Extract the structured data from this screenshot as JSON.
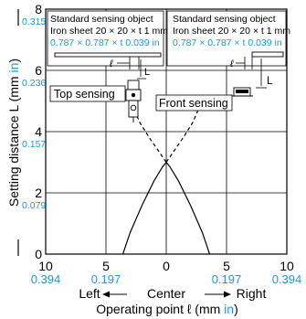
{
  "chart_data": {
    "type": "line",
    "ylabel_text": "Setting distance L (mm ",
    "ylabel_unit": "in",
    "ylabel_close": ")",
    "xlabel_text": "Operating point ℓ (mm ",
    "xlabel_unit": "in",
    "xlabel_close": ")",
    "xlim": [
      -10,
      10
    ],
    "ylim": [
      0,
      8
    ],
    "y_ticks": [
      {
        "v": 0,
        "mm": "0",
        "in": ""
      },
      {
        "v": 2,
        "mm": "2",
        "in": "0.079"
      },
      {
        "v": 4,
        "mm": "4",
        "in": "0.157"
      },
      {
        "v": 6,
        "mm": "6",
        "in": "0.236"
      },
      {
        "v": 8,
        "mm": "8",
        "in": "0.315"
      }
    ],
    "x_ticks": [
      {
        "v": -10,
        "mm": "10",
        "in": "0.394"
      },
      {
        "v": -5,
        "mm": "5",
        "in": "0.197"
      },
      {
        "v": 0,
        "mm": "0",
        "in": ""
      },
      {
        "v": 5,
        "mm": "5",
        "in": "0.197"
      },
      {
        "v": 10,
        "mm": "10",
        "in": "0.394"
      }
    ],
    "direction": {
      "left": "Left",
      "center": "Center",
      "right": "Right"
    },
    "series": [
      {
        "style": "solid",
        "x": [
          -3.6,
          -3.0,
          -2.0,
          -1.0,
          -0.3,
          0.0
        ],
        "y": [
          0.0,
          0.7,
          1.6,
          2.4,
          2.85,
          3.0
        ]
      },
      {
        "style": "solid",
        "x": [
          0.0,
          0.3,
          1.0,
          2.0,
          3.0,
          3.6
        ],
        "y": [
          3.0,
          2.85,
          2.4,
          1.6,
          0.7,
          0.0
        ]
      },
      {
        "style": "dashed",
        "x": [
          0.0,
          -0.7,
          -1.4,
          -2.2,
          -2.8
        ],
        "y": [
          3.0,
          3.4,
          3.8,
          4.3,
          4.85
        ]
      },
      {
        "style": "dashed",
        "x": [
          0.0,
          0.7,
          1.4,
          2.2,
          2.8
        ],
        "y": [
          3.0,
          3.4,
          3.8,
          4.3,
          4.85
        ]
      }
    ],
    "panels": [
      {
        "title": "Standard sensing object",
        "line2": "Iron sheet 20 × 20 × t 1 mm",
        "line3": "0.787 × 0.787 × t 0.039 in",
        "mode": "Top sensing"
      },
      {
        "title": "Standard sensing object",
        "line2": "Iron sheet 20 × 20 × t 1 mm",
        "line3": "0.787 × 0.787 × t 0.039 in",
        "mode": "Front sensing"
      }
    ],
    "diagram_symbols": {
      "operating_point": "ℓ",
      "distance": "L"
    },
    "colors": {
      "inch_label": "#1a9be0",
      "line": "#000000"
    }
  }
}
